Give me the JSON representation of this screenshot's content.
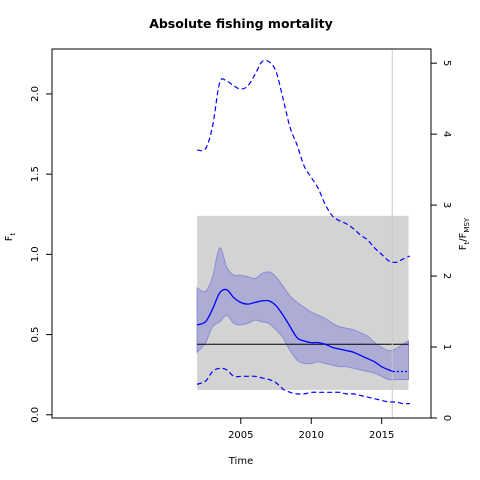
{
  "chart_data": {
    "type": "line",
    "title": "Absolute fishing mortality",
    "xlabel": "Time",
    "ylabel_left": "F",
    "ylabel_left_sub": "t",
    "ylabel_right": "F",
    "ylabel_right_sub": "t",
    "ylabel_right_den": "/F",
    "ylabel_right_den_sub": "MSY",
    "xlim": [
      1991.6,
      2018.5
    ],
    "ylim_left": [
      -0.02,
      2.28
    ],
    "ylim_right": [
      0,
      5.2
    ],
    "fmsy": 0.44,
    "x_ticks": [
      2005,
      2010,
      2015
    ],
    "y_ticks_left": [
      "0.0",
      "0.5",
      "1.0",
      "1.5",
      "2.0"
    ],
    "y_ticks_right": [
      "0",
      "1",
      "2",
      "3",
      "4",
      "5"
    ],
    "grey_box": {
      "x0": 2001.9,
      "x1": 2016.9,
      "y0": 0.155,
      "y1": 1.24
    },
    "vline_x": 2015.75,
    "series": [
      {
        "role": "estimate",
        "color": "#0000ff",
        "x": [
          2001.9,
          2002.5,
          2003.0,
          2003.5,
          2004.0,
          2004.5,
          2005.0,
          2005.5,
          2006.0,
          2006.5,
          2007.0,
          2007.5,
          2008.0,
          2008.5,
          2009.0,
          2009.5,
          2010.0,
          2010.5,
          2011.0,
          2011.5,
          2012.0,
          2012.5,
          2013.0,
          2013.5,
          2014.0,
          2014.5,
          2015.0,
          2015.5,
          2015.8
        ],
        "y": [
          0.56,
          0.58,
          0.66,
          0.76,
          0.78,
          0.73,
          0.7,
          0.69,
          0.7,
          0.71,
          0.71,
          0.68,
          0.62,
          0.55,
          0.48,
          0.46,
          0.45,
          0.45,
          0.44,
          0.42,
          0.41,
          0.4,
          0.39,
          0.37,
          0.35,
          0.33,
          0.3,
          0.28,
          0.27
        ]
      },
      {
        "role": "forecast",
        "color": "#0000ff",
        "x": [
          2015.8,
          2016.9
        ],
        "y": [
          0.27,
          0.27
        ]
      },
      {
        "role": "ci_upper",
        "x": [
          2001.9,
          2002.5,
          2003.0,
          2003.5,
          2004.0,
          2004.5,
          2005.0,
          2005.5,
          2006.0,
          2006.5,
          2007.0,
          2007.5,
          2008.0,
          2008.5,
          2009.0,
          2009.5,
          2010.0,
          2010.5,
          2011.0,
          2011.5,
          2012.0,
          2012.5,
          2013.0,
          2013.5,
          2014.0,
          2014.5,
          2015.0,
          2015.5,
          2016.0,
          2016.5,
          2016.9
        ],
        "y": [
          0.79,
          0.77,
          0.86,
          1.04,
          0.92,
          0.87,
          0.87,
          0.86,
          0.85,
          0.88,
          0.89,
          0.86,
          0.8,
          0.74,
          0.7,
          0.67,
          0.64,
          0.62,
          0.6,
          0.57,
          0.55,
          0.54,
          0.53,
          0.51,
          0.49,
          0.45,
          0.42,
          0.4,
          0.41,
          0.44,
          0.46
        ]
      },
      {
        "role": "ci_lower",
        "x": [
          2001.9,
          2002.5,
          2003.0,
          2003.5,
          2004.0,
          2004.5,
          2005.0,
          2005.5,
          2006.0,
          2006.5,
          2007.0,
          2007.5,
          2008.0,
          2008.5,
          2009.0,
          2009.5,
          2010.0,
          2010.5,
          2011.0,
          2011.5,
          2012.0,
          2012.5,
          2013.0,
          2013.5,
          2014.0,
          2014.5,
          2015.0,
          2015.5,
          2016.0,
          2016.5,
          2016.9
        ],
        "y": [
          0.39,
          0.45,
          0.55,
          0.58,
          0.62,
          0.57,
          0.56,
          0.57,
          0.59,
          0.58,
          0.57,
          0.53,
          0.48,
          0.4,
          0.34,
          0.32,
          0.32,
          0.33,
          0.32,
          0.31,
          0.3,
          0.3,
          0.29,
          0.28,
          0.27,
          0.26,
          0.24,
          0.22,
          0.22,
          0.22,
          0.22
        ]
      },
      {
        "role": "upper_dashed",
        "color": "#0000ff",
        "x": [
          2001.9,
          2002.5,
          2003.0,
          2003.5,
          2004.0,
          2004.5,
          2005.0,
          2005.5,
          2006.0,
          2006.5,
          2007.0,
          2007.5,
          2008.0,
          2008.5,
          2009.0,
          2009.5,
          2010.0,
          2010.5,
          2011.0,
          2011.5,
          2012.0,
          2012.5,
          2013.0,
          2013.5,
          2014.0,
          2014.5,
          2015.0,
          2015.5,
          2016.0,
          2016.5,
          2017.0
        ],
        "y": [
          1.65,
          1.66,
          1.8,
          2.07,
          2.08,
          2.05,
          2.03,
          2.05,
          2.12,
          2.2,
          2.2,
          2.14,
          1.97,
          1.79,
          1.68,
          1.55,
          1.48,
          1.41,
          1.31,
          1.24,
          1.21,
          1.19,
          1.16,
          1.12,
          1.09,
          1.04,
          1.0,
          0.96,
          0.95,
          0.97,
          0.99
        ]
      },
      {
        "role": "lower_dashed",
        "color": "#0000ff",
        "x": [
          2001.9,
          2002.5,
          2003.0,
          2003.5,
          2004.0,
          2004.5,
          2005.0,
          2005.5,
          2006.0,
          2006.5,
          2007.0,
          2007.5,
          2008.0,
          2008.5,
          2009.0,
          2009.5,
          2010.0,
          2010.5,
          2011.0,
          2011.5,
          2012.0,
          2012.5,
          2013.0,
          2013.5,
          2014.0,
          2014.5,
          2015.0,
          2015.5,
          2016.0,
          2016.5,
          2017.0
        ],
        "y": [
          0.19,
          0.21,
          0.27,
          0.29,
          0.28,
          0.24,
          0.24,
          0.24,
          0.24,
          0.23,
          0.22,
          0.2,
          0.16,
          0.14,
          0.13,
          0.13,
          0.14,
          0.14,
          0.14,
          0.14,
          0.14,
          0.13,
          0.13,
          0.12,
          0.11,
          0.1,
          0.09,
          0.08,
          0.08,
          0.07,
          0.07
        ]
      }
    ]
  }
}
